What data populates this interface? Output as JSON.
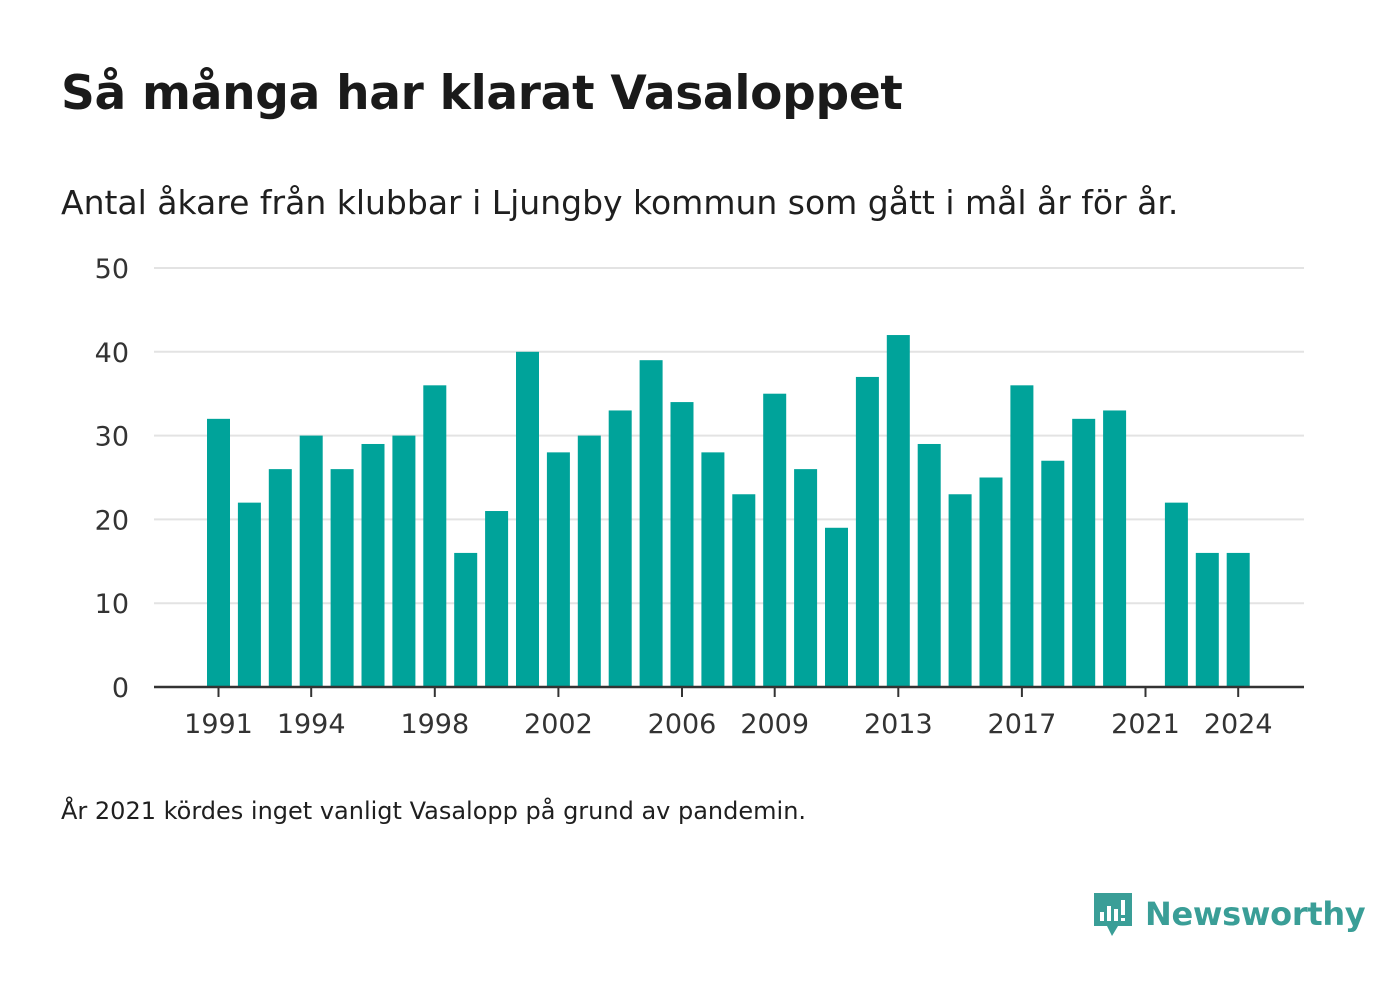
{
  "header": {
    "title": "Så många har klarat Vasaloppet",
    "subtitle": "Antal åkare från klubbar i Ljungby kommun som gått i mål år för år."
  },
  "footnote": "År 2021 kördes inget vanligt Vasalopp på grund av pandemin.",
  "brand": {
    "name": "Newsworthy",
    "icon": "newsworthy-logo-icon",
    "color": "#3a9e97"
  },
  "chart_data": {
    "type": "bar",
    "bar_color": "#00a39a",
    "categories": [
      "1991",
      "1992",
      "1993",
      "1994",
      "1995",
      "1996",
      "1997",
      "1998",
      "1999",
      "2000",
      "2001",
      "2002",
      "2003",
      "2004",
      "2005",
      "2006",
      "2007",
      "2008",
      "2009",
      "2010",
      "2011",
      "2012",
      "2013",
      "2014",
      "2015",
      "2016",
      "2017",
      "2018",
      "2019",
      "2020",
      "2021",
      "2022",
      "2023",
      "2024"
    ],
    "values": [
      32,
      22,
      26,
      30,
      26,
      29,
      30,
      36,
      16,
      21,
      40,
      28,
      30,
      33,
      39,
      34,
      28,
      23,
      35,
      26,
      19,
      37,
      42,
      29,
      23,
      25,
      36,
      27,
      32,
      33,
      0,
      22,
      16,
      16
    ],
    "x_tick_labels": [
      "1991",
      "1994",
      "1998",
      "2002",
      "2006",
      "2009",
      "2013",
      "2017",
      "2021",
      "2024"
    ],
    "y_ticks": [
      0,
      10,
      20,
      30,
      40,
      50
    ],
    "ylim": [
      0,
      50
    ],
    "grid": true,
    "xlabel": "",
    "ylabel": ""
  }
}
